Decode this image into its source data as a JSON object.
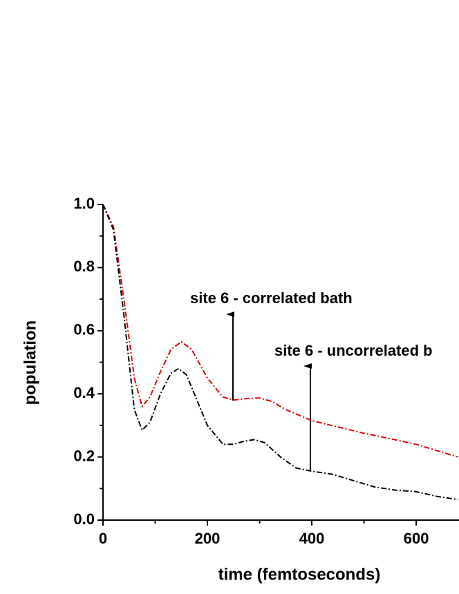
{
  "chart_data": {
    "type": "line",
    "xlabel": "time (femtoseconds)",
    "ylabel": "population",
    "annotations": [
      "site 6 - correlated bath",
      "site 6 - uncorrelated b"
    ],
    "xlim": [
      0,
      680
    ],
    "ylim": [
      0,
      1
    ],
    "xticks": [
      0,
      200,
      400,
      600
    ],
    "xminor": [
      100,
      300,
      500
    ],
    "yticks": [
      {
        "value": 0,
        "label": "0.0"
      },
      {
        "value": 0.2,
        "label": "0.2"
      },
      {
        "value": 0.4,
        "label": "0.4"
      },
      {
        "value": 0.6,
        "label": "0.6"
      },
      {
        "value": 0.8,
        "label": "0.8"
      },
      {
        "value": 1,
        "label": "1.0"
      }
    ],
    "yminor": [
      0.1,
      0.3,
      0.5,
      0.7,
      0.9
    ],
    "series": [
      {
        "color": "#e00000",
        "x": [
          0,
          20,
          40,
          60,
          75,
          90,
          110,
          130,
          150,
          170,
          200,
          230,
          250,
          275,
          300,
          325,
          350,
          400,
          450,
          500,
          550,
          600,
          650,
          680
        ],
        "values": [
          1.0,
          0.93,
          0.7,
          0.45,
          0.36,
          0.39,
          0.47,
          0.54,
          0.565,
          0.54,
          0.45,
          0.39,
          0.38,
          0.385,
          0.387,
          0.375,
          0.35,
          0.315,
          0.295,
          0.275,
          0.258,
          0.24,
          0.215,
          0.2
        ]
      },
      {
        "color": "#000000",
        "x": [
          0,
          20,
          40,
          60,
          75,
          90,
          110,
          130,
          145,
          160,
          180,
          200,
          230,
          250,
          270,
          290,
          310,
          340,
          370,
          400,
          440,
          480,
          520,
          560,
          600,
          640,
          680
        ],
        "values": [
          1.0,
          0.92,
          0.65,
          0.35,
          0.285,
          0.31,
          0.4,
          0.465,
          0.48,
          0.46,
          0.38,
          0.3,
          0.24,
          0.24,
          0.25,
          0.255,
          0.245,
          0.2,
          0.165,
          0.155,
          0.145,
          0.125,
          0.105,
          0.095,
          0.09,
          0.075,
          0.065
        ]
      }
    ]
  }
}
